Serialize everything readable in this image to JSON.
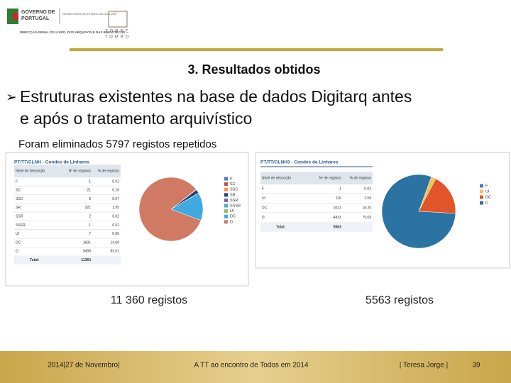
{
  "header": {
    "logo_line1": "GOVERNO DE",
    "logo_line2": "PORTUGAL",
    "ministry": "SECRETÁRIO DE ESTADO DA CULTURA",
    "agency": "DIRECÇÃO-GERAL DO LIVRO, DOS ARQUIVOS E DAS BIBLIOTECAS",
    "tt_line1": "TORRE",
    "tt_line2": "TOMBO"
  },
  "title": "3. Resultados obtidos",
  "bullet": {
    "line1": "Estruturas existentes na base de dados Digitarq antes",
    "line2": "e após o tratamento arquivístico"
  },
  "note": "Foram eliminados 5797 registos repetidos",
  "panels": [
    {
      "title": "PT/TT/CLNH - Condes de Linhares",
      "columns": [
        "Nível de descrição",
        "Nº de registos",
        "% de registos"
      ],
      "rows": [
        [
          "F",
          1,
          "0.01"
        ],
        [
          "SC",
          21,
          "0.18"
        ],
        [
          "SSC",
          8,
          "0.07"
        ],
        [
          "SR",
          221,
          "1.95"
        ],
        [
          "SSR",
          2,
          "0.02"
        ],
        [
          "SSSR",
          1,
          "0.01"
        ],
        [
          "UI",
          7,
          "0.06"
        ],
        [
          "DC",
          1601,
          "14.09"
        ],
        [
          "D",
          9498,
          "83.61"
        ]
      ],
      "colors": [
        "#4a7ebb",
        "#c0504d",
        "#f79646",
        "#1f497d",
        "#8064a2",
        "#4bacc6",
        "#9bbb59",
        "#3fa9e0",
        "#d07a64"
      ],
      "total_label": "Total:",
      "total": 11360,
      "caption": "11 360 registos"
    },
    {
      "title": "PT/TT/CLNH3 - Condes de Linhares",
      "columns": [
        "Nível de descrição",
        "Nº de registos",
        "% de registos"
      ],
      "rows": [
        [
          "F",
          1,
          "0.02"
        ],
        [
          "UI",
          116,
          "2.09"
        ],
        [
          "DC",
          1013,
          "18.20"
        ],
        [
          "D",
          4433,
          "79.69"
        ]
      ],
      "colors": [
        "#4a7ebb",
        "#f3c24f",
        "#e2552a",
        "#2b73a3"
      ],
      "total_label": "Total:",
      "total": 5563,
      "caption": "5563 registos"
    }
  ],
  "footer": {
    "date": "2014|27 de Novembro|",
    "event": "A TT ao encontro de Todos em 2014",
    "author": "| Teresa Jorge |",
    "page": "39"
  }
}
